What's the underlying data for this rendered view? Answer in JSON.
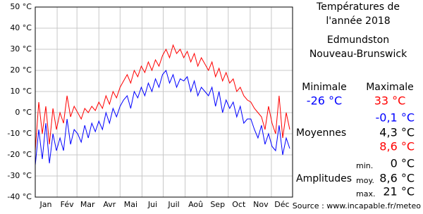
{
  "chart_data": {
    "type": "line",
    "title_lines": [
      "Températures de",
      "l'année 2018"
    ],
    "x": [
      1,
      6,
      11,
      16,
      21,
      26,
      31,
      36,
      41,
      46,
      51,
      56,
      61,
      66,
      71,
      76,
      81,
      86,
      91,
      96,
      101,
      106,
      111,
      116,
      121,
      126,
      131,
      136,
      141,
      146,
      151,
      156,
      161,
      166,
      171,
      176,
      181,
      186,
      191,
      196,
      201,
      206,
      211,
      216,
      221,
      226,
      231,
      236,
      241,
      246,
      251,
      256,
      261,
      266,
      271,
      276,
      281,
      286,
      291,
      296,
      301,
      306,
      311,
      316,
      321,
      326,
      331,
      336,
      341,
      346,
      351,
      356,
      361
    ],
    "series": [
      {
        "color": "#ff0000",
        "values": [
          -18,
          5,
          -10,
          3,
          -15,
          2,
          -8,
          0,
          -5,
          8,
          -2,
          3,
          0,
          -3,
          2,
          0,
          3,
          1,
          5,
          2,
          8,
          4,
          10,
          7,
          12,
          15,
          18,
          14,
          20,
          17,
          22,
          19,
          24,
          20,
          25,
          22,
          27,
          30,
          26,
          32,
          28,
          30,
          26,
          29,
          24,
          28,
          22,
          26,
          23,
          20,
          24,
          17,
          21,
          15,
          19,
          14,
          16,
          10,
          12,
          8,
          6,
          5,
          2,
          0,
          -2,
          -8,
          3,
          -5,
          -10,
          8,
          -12,
          0,
          -8
        ]
      },
      {
        "color": "#0000ff",
        "values": [
          -25,
          -8,
          -22,
          -5,
          -24,
          -10,
          -18,
          -12,
          -18,
          -3,
          -15,
          -8,
          -10,
          -14,
          -6,
          -12,
          -5,
          -9,
          -4,
          -8,
          0,
          -5,
          2,
          -2,
          3,
          6,
          8,
          2,
          10,
          7,
          12,
          8,
          14,
          10,
          16,
          12,
          18,
          20,
          14,
          18,
          12,
          16,
          15,
          17,
          10,
          15,
          8,
          12,
          10,
          8,
          12,
          3,
          10,
          0,
          6,
          2,
          5,
          -2,
          3,
          -5,
          -3,
          -3,
          -8,
          -12,
          -6,
          -15,
          -10,
          -16,
          -18,
          -6,
          -20,
          -12,
          -17
        ]
      }
    ],
    "xlim": [
      1,
      365
    ],
    "xticks": [
      {
        "value": 16,
        "label": "Jan"
      },
      {
        "value": 46,
        "label": "Fév"
      },
      {
        "value": 75,
        "label": "Mar"
      },
      {
        "value": 106,
        "label": "Avr"
      },
      {
        "value": 136,
        "label": "Mai"
      },
      {
        "value": 167,
        "label": "Jui"
      },
      {
        "value": 197,
        "label": "Juil"
      },
      {
        "value": 228,
        "label": "Aoû"
      },
      {
        "value": 259,
        "label": "Sep"
      },
      {
        "value": 289,
        "label": "Oct"
      },
      {
        "value": 320,
        "label": "Nov"
      },
      {
        "value": 350,
        "label": "Déc"
      }
    ],
    "xgrid": [
      32,
      60,
      91,
      121,
      152,
      182,
      213,
      244,
      274,
      305,
      335
    ],
    "ylim": [
      -40,
      50
    ],
    "yticks": [
      {
        "value": 50,
        "label": "50 °C"
      },
      {
        "value": 40,
        "label": "40 °C"
      },
      {
        "value": 30,
        "label": "30 °C"
      },
      {
        "value": 20,
        "label": "20 °C"
      },
      {
        "value": 10,
        "label": "10 °C"
      },
      {
        "value": 0,
        "label": "0 °C"
      },
      {
        "value": -10,
        "label": "-10 °C"
      },
      {
        "value": -20,
        "label": "-20 °C"
      },
      {
        "value": -30,
        "label": "-30 °C"
      },
      {
        "value": -40,
        "label": "-40 °C"
      }
    ],
    "grid": true
  },
  "panel": {
    "place": [
      "Edmundston",
      "Nouveau-Brunswick"
    ],
    "min_label": "Minimale",
    "max_label": "Maximale",
    "min_value": "-26 °C",
    "max_value": "33 °C",
    "averages_label": "Moyennes",
    "averages": [
      "-0,1 °C",
      "4,3 °C",
      "8,6 °C"
    ],
    "amplitudes_label": "Amplitudes",
    "amplitude_keys": [
      "min.",
      "moy.",
      "max."
    ],
    "amplitudes": [
      "0 °C",
      "8,6 °C",
      "21 °C"
    ],
    "source": "Source : www.incapable.fr/meteo"
  }
}
